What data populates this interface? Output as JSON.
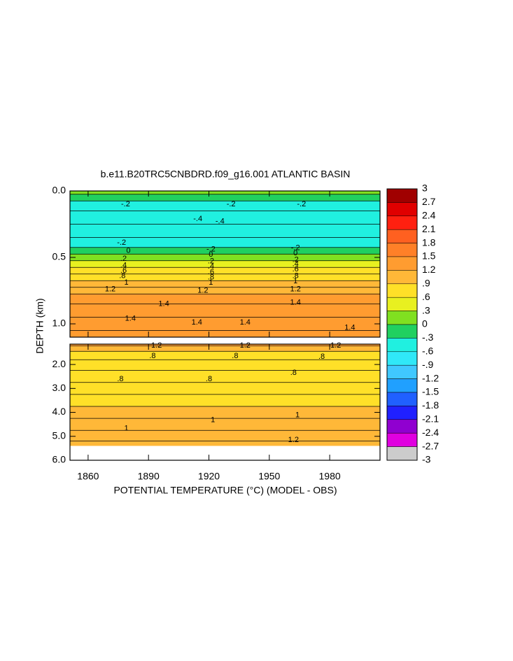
{
  "chart_data": {
    "type": "contour",
    "title": "b.e11.B20TRC5CNBDRD.f09_g16.001 ATLANTIC BASIN",
    "x_label": "POTENTIAL TEMPERATURE (°C) (MODEL - OBS)",
    "y_label": "DEPTH (km)",
    "xlim": [
      1851,
      2005
    ],
    "xticks": [
      1860,
      1890,
      1920,
      1950,
      1980
    ],
    "panels": [
      {
        "ylim": [
          0,
          1.1
        ],
        "yticks": [
          {
            "value": 0,
            "label": "0.0"
          },
          0.5,
          {
            "value": 1,
            "label": "1.0"
          }
        ],
        "depths": [
          0,
          0.05,
          0.1,
          0.2,
          0.3,
          0.4,
          0.45,
          0.5,
          0.55,
          0.6,
          0.65,
          0.7,
          0.75,
          0.8,
          0.9,
          1.0,
          1.1
        ],
        "values": [
          0.1,
          -0.2,
          -0.35,
          -0.4,
          -0.4,
          -0.35,
          -0.15,
          0.1,
          0.4,
          0.65,
          0.85,
          1.0,
          1.15,
          1.3,
          1.4,
          1.45,
          1.45
        ],
        "contour_labels": [
          {
            "text": "-.2",
            "x": 1878.6,
            "y": 0.1
          },
          {
            "text": "-.2",
            "x": 1931,
            "y": 0.1
          },
          {
            "text": "-.2",
            "x": 1966,
            "y": 0.1
          },
          {
            "text": "-.4",
            "x": 1914.5,
            "y": 0.21
          },
          {
            "text": "-.4",
            "x": 1925.5,
            "y": 0.23
          },
          {
            "text": "-.2",
            "x": 1876.6,
            "y": 0.39
          },
          {
            "text": "0",
            "x": 1880,
            "y": 0.45
          },
          {
            "text": ".2",
            "x": 1877.6,
            "y": 0.51
          },
          {
            "text": ".4",
            "x": 1877.6,
            "y": 0.56
          },
          {
            "text": ".6",
            "x": 1877.6,
            "y": 0.6
          },
          {
            "text": ".8",
            "x": 1877,
            "y": 0.64
          },
          {
            "text": "1",
            "x": 1879,
            "y": 0.69
          },
          {
            "text": "1.2",
            "x": 1871,
            "y": 0.74
          },
          {
            "text": "1.4",
            "x": 1897.6,
            "y": 0.85
          },
          {
            "text": "1.4",
            "x": 1881,
            "y": 0.96
          },
          {
            "text": "-.2",
            "x": 1921,
            "y": 0.44
          },
          {
            "text": "0",
            "x": 1921,
            "y": 0.48
          },
          {
            "text": ".2",
            "x": 1921,
            "y": 0.53
          },
          {
            "text": ".4",
            "x": 1921,
            "y": 0.57
          },
          {
            "text": ".6",
            "x": 1921,
            "y": 0.61
          },
          {
            "text": ".8",
            "x": 1921,
            "y": 0.65
          },
          {
            "text": "1",
            "x": 1921,
            "y": 0.69
          },
          {
            "text": "1.2",
            "x": 1917,
            "y": 0.75
          },
          {
            "text": "1.4",
            "x": 1914,
            "y": 0.99
          },
          {
            "text": "1.4",
            "x": 1938,
            "y": 0.99
          },
          {
            "text": "-.2",
            "x": 1963,
            "y": 0.43
          },
          {
            "text": "0",
            "x": 1963,
            "y": 0.47
          },
          {
            "text": ".2",
            "x": 1963,
            "y": 0.52
          },
          {
            "text": ".4",
            "x": 1963,
            "y": 0.55
          },
          {
            "text": ".6",
            "x": 1963,
            "y": 0.59
          },
          {
            "text": ".8",
            "x": 1963,
            "y": 0.64
          },
          {
            "text": "1",
            "x": 1963,
            "y": 0.68
          },
          {
            "text": "1.2",
            "x": 1963,
            "y": 0.74
          },
          {
            "text": "1.4",
            "x": 1963,
            "y": 0.84
          },
          {
            "text": "1.4",
            "x": 1990,
            "y": 1.03
          }
        ]
      },
      {
        "ylim": [
          1.15,
          6.0
        ],
        "yticks": [
          {
            "value": 2,
            "label": "2.0"
          },
          {
            "value": 3,
            "label": "3.0"
          },
          {
            "value": 4,
            "label": "4.0"
          },
          {
            "value": 5,
            "label": "5.0"
          },
          {
            "value": 6,
            "label": "6.0"
          }
        ],
        "depths": [
          1.15,
          1.3,
          1.6,
          2.0,
          2.5,
          3.0,
          3.5,
          4.0,
          4.5,
          5.0,
          5.4
        ],
        "values": [
          1.3,
          1.1,
          0.9,
          0.8,
          0.8,
          0.85,
          0.9,
          0.95,
          1.0,
          1.05,
          1.15
        ],
        "contour_labels": [
          {
            "text": "1.2",
            "x": 1894,
            "y": 1.21
          },
          {
            "text": "1.2",
            "x": 1938,
            "y": 1.21
          },
          {
            "text": "1.2",
            "x": 1983,
            "y": 1.21
          },
          {
            "text": ".8",
            "x": 1892,
            "y": 1.65
          },
          {
            "text": ".8",
            "x": 1933,
            "y": 1.65
          },
          {
            "text": ".8",
            "x": 1976,
            "y": 1.68
          },
          {
            "text": ".8",
            "x": 1876,
            "y": 2.62
          },
          {
            "text": ".8",
            "x": 1920,
            "y": 2.62
          },
          {
            "text": ".8",
            "x": 1962,
            "y": 2.35
          },
          {
            "text": "1",
            "x": 1879,
            "y": 4.68
          },
          {
            "text": "1",
            "x": 1922,
            "y": 4.32
          },
          {
            "text": "1",
            "x": 1964,
            "y": 4.12
          },
          {
            "text": "1.2",
            "x": 1962,
            "y": 5.15
          }
        ]
      }
    ],
    "colorbar": {
      "clim": [
        -3,
        3
      ],
      "ticks": [
        3,
        2.7,
        2.4,
        2.1,
        1.8,
        1.5,
        1.2,
        {
          "value": 0.9,
          "label": ".9"
        },
        {
          "value": 0.6,
          "label": ".6"
        },
        {
          "value": 0.3,
          "label": ".3"
        },
        0,
        {
          "value": -0.3,
          "label": "-.3"
        },
        {
          "value": -0.6,
          "label": "-.6"
        },
        {
          "value": -0.9,
          "label": "-.9"
        },
        -1.2,
        -1.5,
        -1.8,
        -2.1,
        -2.4,
        -2.7,
        -3
      ],
      "colors": [
        "#a00000",
        "#e00000",
        "#ff2010",
        "#ff6020",
        "#ff8028",
        "#ff9c30",
        "#ffb838",
        "#ffe028",
        "#e8f020",
        "#80e020",
        "#20d060",
        "#20f0e0",
        "#30e8f8",
        "#40c8ff",
        "#20a0ff",
        "#2060ff",
        "#2020ff",
        "#9000d0",
        "#e000e0",
        "#cccccc",
        "#888888"
      ]
    }
  }
}
